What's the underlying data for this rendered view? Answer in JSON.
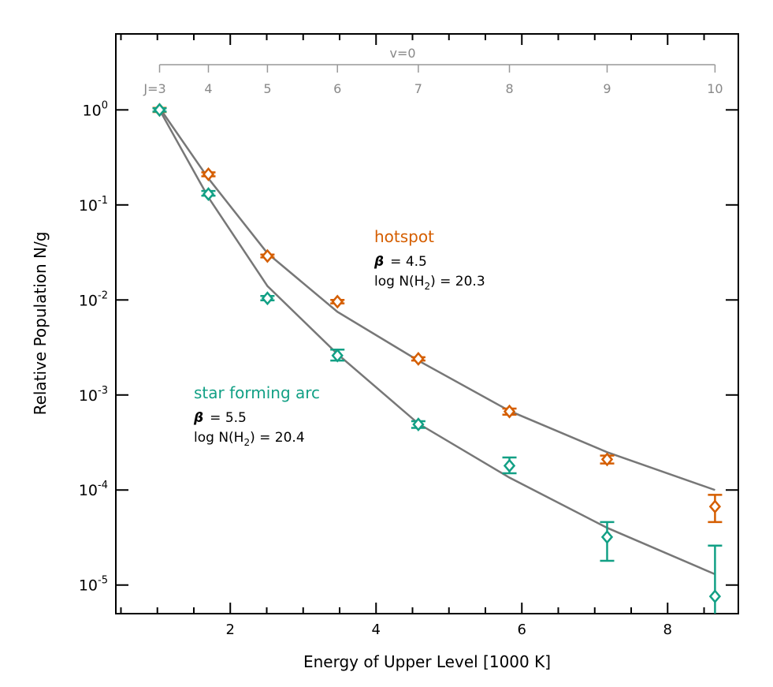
{
  "chart_data": {
    "type": "scatter",
    "xlabel": "Energy of Upper Level [1000 K]",
    "ylabel": "Relative Population N/g",
    "xlim": [
      0.43,
      8.97
    ],
    "ylim": [
      5e-06,
      6.3
    ],
    "yscale": "log",
    "grid": false,
    "x_ticks": [
      2,
      4,
      6,
      8
    ],
    "y_ticks": [
      {
        "v": 1,
        "exp": "0"
      },
      {
        "v": 0.1,
        "exp": "-1"
      },
      {
        "v": 0.01,
        "exp": "-2"
      },
      {
        "v": 0.001,
        "exp": "-3"
      },
      {
        "v": 0.0001,
        "exp": "-4"
      },
      {
        "v": 1e-05,
        "exp": "-5"
      }
    ],
    "top_axis": {
      "label": "v=0",
      "ticks": [
        {
          "x": 1.03,
          "label": "J=3"
        },
        {
          "x": 1.7,
          "label": "4"
        },
        {
          "x": 2.51,
          "label": "5"
        },
        {
          "x": 3.47,
          "label": "6"
        },
        {
          "x": 4.58,
          "label": "7"
        },
        {
          "x": 5.83,
          "label": "8"
        },
        {
          "x": 7.17,
          "label": "9"
        },
        {
          "x": 8.65,
          "label": "10"
        }
      ]
    },
    "x": [
      1.03,
      1.7,
      2.51,
      3.47,
      4.58,
      5.83,
      7.17,
      8.65
    ],
    "series": [
      {
        "name": "hotspot",
        "color": "#d55e00",
        "beta_label": "β",
        "beta": "= 4.5",
        "logN": "log N(H",
        "logN_sub": "2",
        "logN_val": ") = 20.3",
        "values": [
          1.0,
          0.21,
          0.029,
          0.0096,
          0.0024,
          0.00067,
          0.00021,
          6.7e-05
        ],
        "err_hi": [
          1.05,
          0.22,
          0.03,
          0.01,
          0.0025,
          0.00072,
          0.00023,
          8.9e-05
        ],
        "err_lo": [
          0.95,
          0.2,
          0.028,
          0.0092,
          0.0023,
          0.00062,
          0.00019,
          4.6e-05
        ],
        "model": [
          1.05,
          0.19,
          0.031,
          0.0075,
          0.0023,
          0.00068,
          0.00025,
          0.0001
        ]
      },
      {
        "name": "star forming arc",
        "color": "#12a085",
        "beta_label": "β",
        "beta": "= 5.5",
        "logN": "log N(H",
        "logN_sub": "2",
        "logN_val": ") = 20.4",
        "values": [
          1.0,
          0.13,
          0.0104,
          0.0026,
          0.00049,
          0.00018,
          3.2e-05,
          7.6e-06
        ],
        "err_hi": [
          1.04,
          0.14,
          0.011,
          0.003,
          0.00053,
          0.00022,
          4.6e-05,
          2.6e-05
        ],
        "err_lo": [
          0.96,
          0.125,
          0.0099,
          0.0023,
          0.00045,
          0.00015,
          1.8e-05,
          4e-06
        ],
        "model": [
          1.0,
          0.12,
          0.014,
          0.0027,
          0.0005,
          0.000135,
          4e-05,
          1.3e-05
        ]
      }
    ],
    "model_color": "#777777"
  }
}
